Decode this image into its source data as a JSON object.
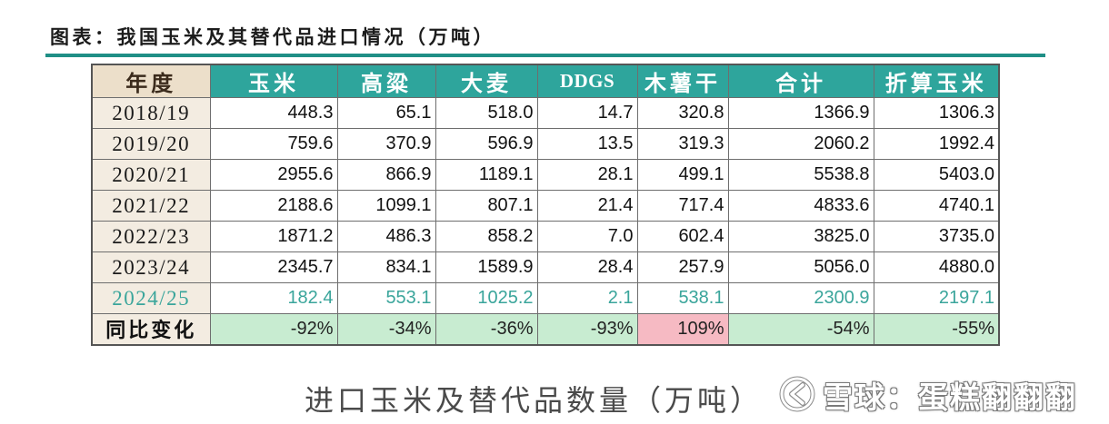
{
  "title": "图表：我国玉米及其替代品进口情况（万吨）",
  "chart_data": {
    "type": "table",
    "columns": [
      "年度",
      "玉米",
      "高粱",
      "大麦",
      "DDGS",
      "木薯干",
      "合计",
      "折算玉米"
    ],
    "rows": [
      {
        "year": "2018/19",
        "values": [
          "448.3",
          "65.1",
          "518.0",
          "14.7",
          "320.8",
          "1366.9",
          "1306.3"
        ]
      },
      {
        "year": "2019/20",
        "values": [
          "759.6",
          "370.9",
          "596.9",
          "13.5",
          "319.3",
          "2060.2",
          "1992.4"
        ]
      },
      {
        "year": "2020/21",
        "values": [
          "2955.6",
          "866.9",
          "1189.1",
          "28.1",
          "499.1",
          "5538.8",
          "5403.0"
        ]
      },
      {
        "year": "2021/22",
        "values": [
          "2188.6",
          "1099.1",
          "807.1",
          "21.4",
          "717.4",
          "4833.6",
          "4740.1"
        ]
      },
      {
        "year": "2022/23",
        "values": [
          "1871.2",
          "486.3",
          "858.2",
          "7.0",
          "602.4",
          "3825.0",
          "3735.0"
        ]
      },
      {
        "year": "2023/24",
        "values": [
          "2345.7",
          "834.1",
          "1589.9",
          "28.4",
          "257.9",
          "5056.0",
          "4880.0"
        ]
      },
      {
        "year": "2024/25",
        "values": [
          "182.4",
          "553.1",
          "1025.2",
          "2.1",
          "538.1",
          "2300.9",
          "2197.1"
        ]
      }
    ],
    "change_row": {
      "label": "同比变化",
      "values": [
        "-92%",
        "-34%",
        "-36%",
        "-93%",
        "109%",
        "-54%",
        "-55%"
      ]
    }
  },
  "caption": "进口玉米及替代品数量（万吨）",
  "watermark": {
    "text": "雪球：蛋糕翻翻翻",
    "logo_icon": "xueqiu-logo-icon"
  },
  "colors": {
    "title_rule": "#1f8f86",
    "header_bg": "#2ea59c",
    "year_header_bg": "#ecdfca",
    "year_bg": "#f3ece1",
    "latest_row_text": "#3aa59b",
    "decrease_bg": "#c8ecd1",
    "increase_bg": "#f6bac3"
  }
}
